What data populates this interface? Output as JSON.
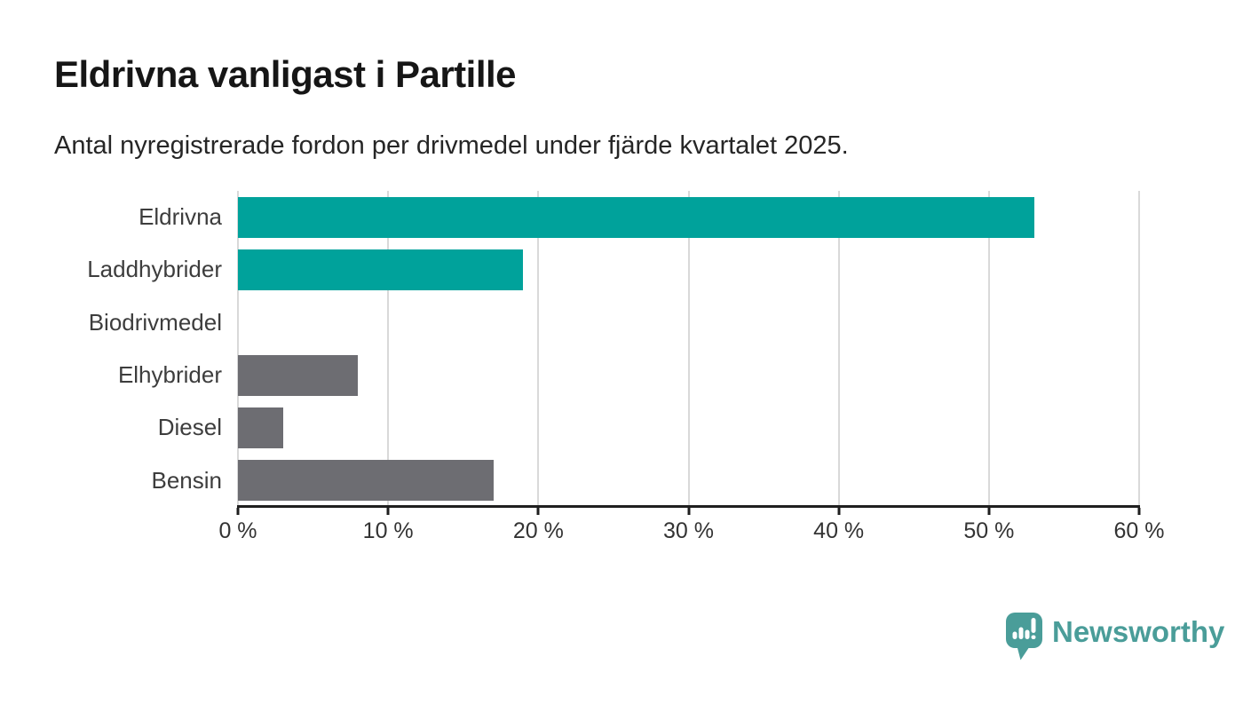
{
  "header": {
    "title": "Eldrivna vanligast i Partille",
    "subtitle": "Antal nyregistrerade fordon per drivmedel under fjärde kvartalet 2025."
  },
  "chart_data": {
    "type": "bar",
    "orientation": "horizontal",
    "title": "Eldrivna vanligast i Partille",
    "subtitle": "Antal nyregistrerade fordon per drivmedel under fjärde kvartalet 2025.",
    "categories": [
      "Eldrivna",
      "Laddhybrider",
      "Biodrivmedel",
      "Elhybrider",
      "Diesel",
      "Bensin"
    ],
    "values": [
      53,
      19,
      0,
      8,
      3,
      17
    ],
    "value_unit": "%",
    "xlim": [
      0,
      60
    ],
    "x_tick_labels": [
      "0 %",
      "10 %",
      "20 %",
      "30 %",
      "40 %",
      "50 %",
      "60 %"
    ],
    "grid": true,
    "legend": false,
    "bar_colors": [
      "#00a29b",
      "#00a29b",
      "#6d6d72",
      "#6d6d72",
      "#6d6d72",
      "#6d6d72"
    ],
    "highlight_color": "#00a29b",
    "default_color": "#6d6d72"
  },
  "branding": {
    "logo_text": "Newsworthy",
    "logo_icon": "newsworthy-pin-chart-icon",
    "logo_color": "#4a9d99"
  },
  "colors": {
    "background": "#ffffff",
    "title_text": "#161616",
    "subtitle_text": "#262626",
    "category_label": "#3d3d3d",
    "tick_label": "#333333",
    "axis_line": "#1f1f1f",
    "gridline": "#d9d9d9"
  }
}
